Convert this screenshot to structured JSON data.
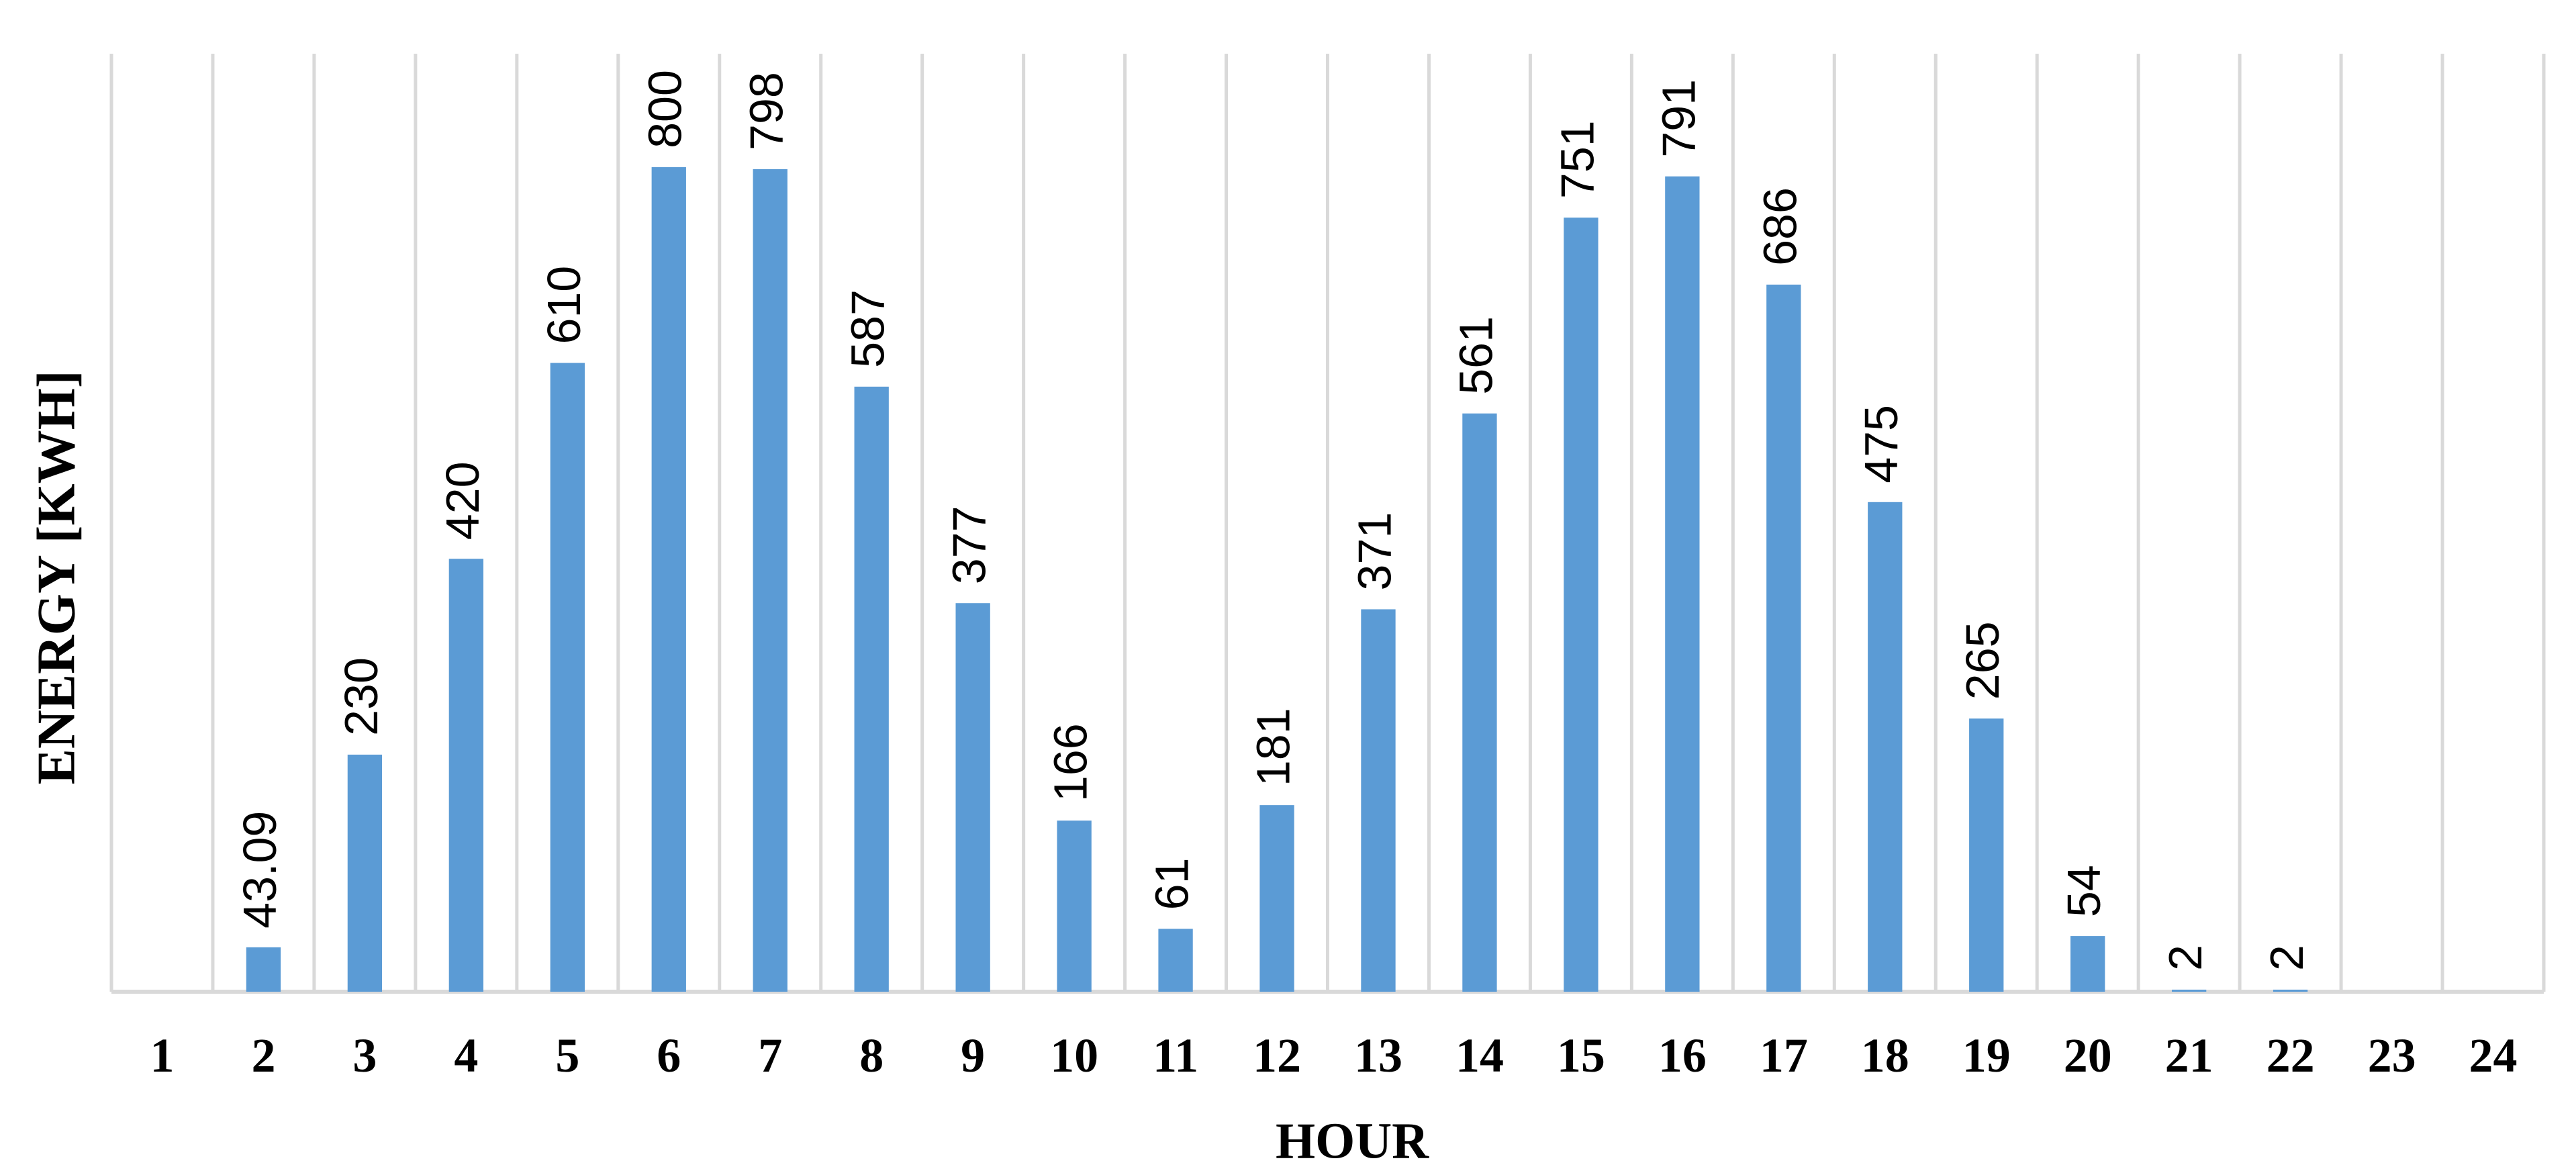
{
  "chart_data": {
    "type": "bar",
    "title": "",
    "xlabel": "HOUR",
    "ylabel": "ENERGY [KWH]",
    "categories": [
      "1",
      "2",
      "3",
      "4",
      "5",
      "6",
      "7",
      "8",
      "9",
      "10",
      "11",
      "12",
      "13",
      "14",
      "15",
      "16",
      "17",
      "18",
      "19",
      "20",
      "21",
      "22",
      "23",
      "24"
    ],
    "values": [
      0,
      43.09,
      230,
      420,
      610,
      800,
      798,
      587,
      377,
      166,
      61,
      181,
      371,
      561,
      751,
      791,
      686,
      475,
      265,
      54,
      2,
      2,
      0,
      0
    ],
    "data_labels": [
      "",
      "43.09",
      "230",
      "420",
      "610",
      "800",
      "798",
      "587",
      "377",
      "166",
      "61",
      "181",
      "371",
      "561",
      "751",
      "791",
      "686",
      "475",
      "265",
      "54",
      "2",
      "2",
      "",
      ""
    ],
    "ylim": [
      0,
      910
    ],
    "grid": "vertical",
    "legend": "none",
    "colors": {
      "bar": "#5B9BD5",
      "grid": "#D9D9D9",
      "axis": "#D9D9D9",
      "text": "#000000"
    }
  }
}
